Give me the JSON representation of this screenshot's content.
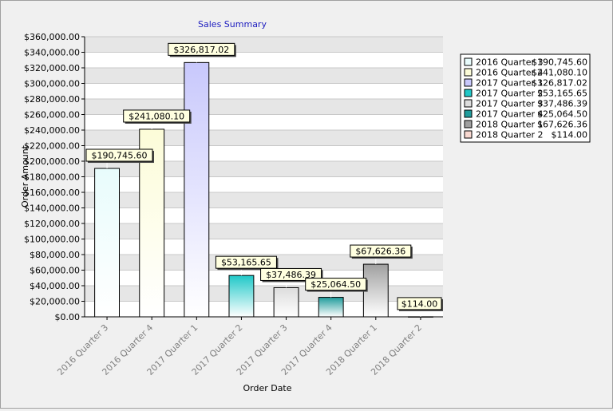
{
  "chart_data": {
    "type": "bar",
    "title": "Sales Summary",
    "xlabel": "Order Date",
    "ylabel": "Order Amount",
    "ylim": [
      0,
      360000
    ],
    "ytick_step": 20000,
    "grid": true,
    "legend_position": "right",
    "categories": [
      "2016 Quarter 3",
      "2016 Quarter 4",
      "2017 Quarter 1",
      "2017 Quarter 2",
      "2017 Quarter 3",
      "2017 Quarter 4",
      "2018 Quarter 1",
      "2018 Quarter 2"
    ],
    "values": [
      190745.6,
      241080.1,
      326817.02,
      53165.65,
      37486.39,
      25064.5,
      67626.36,
      114.0
    ],
    "value_labels": [
      "$190,745.60",
      "$241,080.10",
      "$326,817.02",
      "$53,165.65",
      "$37,486.39",
      "$25,064.50",
      "$67,626.36",
      "$114.00"
    ],
    "colors": [
      "#e8fcfc",
      "#fcfcd8",
      "#c8c8fc",
      "#20c8c8",
      "#dcdcdc",
      "#209c9c",
      "#a0a0a0",
      "#f8d8d0"
    ]
  }
}
